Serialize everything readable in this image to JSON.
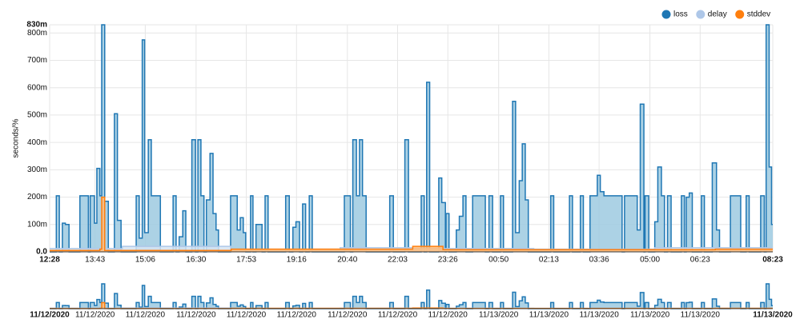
{
  "chart_data": {
    "type": "step-area",
    "y_label": "seconds/%",
    "legend": "top-right",
    "grid": true,
    "xlim": [
      0,
      1195
    ],
    "xticks": [
      {
        "value": 0,
        "label": "12:28"
      },
      {
        "value": 75,
        "label": "13:43"
      },
      {
        "value": 158,
        "label": "15:06"
      },
      {
        "value": 242,
        "label": "16:30"
      },
      {
        "value": 325,
        "label": "17:53"
      },
      {
        "value": 408,
        "label": "19:16"
      },
      {
        "value": 492,
        "label": "20:40"
      },
      {
        "value": 575,
        "label": "22:03"
      },
      {
        "value": 658,
        "label": "23:26"
      },
      {
        "value": 742,
        "label": "00:50"
      },
      {
        "value": 825,
        "label": "02:13"
      },
      {
        "value": 908,
        "label": "03:36"
      },
      {
        "value": 992,
        "label": "05:00"
      },
      {
        "value": 1075,
        "label": "06:23"
      },
      {
        "value": 1195,
        "label": "08:23"
      }
    ],
    "context_xticks": [
      {
        "value": 0,
        "label": "11/12/2020"
      },
      {
        "value": 75,
        "label": "11/12/2020"
      },
      {
        "value": 158,
        "label": "11/12/2020"
      },
      {
        "value": 242,
        "label": "11/12/2020"
      },
      {
        "value": 325,
        "label": "11/12/2020"
      },
      {
        "value": 408,
        "label": "11/12/2020"
      },
      {
        "value": 492,
        "label": "11/12/2020"
      },
      {
        "value": 575,
        "label": "11/12/2020"
      },
      {
        "value": 658,
        "label": "11/12/2020"
      },
      {
        "value": 742,
        "label": "11/13/2020"
      },
      {
        "value": 825,
        "label": "11/13/2020"
      },
      {
        "value": 908,
        "label": "11/13/2020"
      },
      {
        "value": 992,
        "label": "11/13/2020"
      },
      {
        "value": 1075,
        "label": "11/13/2020"
      },
      {
        "value": 1195,
        "label": "11/13/2020"
      }
    ],
    "ylim": [
      0,
      0.83
    ],
    "yticks": [
      {
        "value": 0,
        "label": "0.0"
      },
      {
        "value": 0.1,
        "label": "100m"
      },
      {
        "value": 0.2,
        "label": "200m"
      },
      {
        "value": 0.3,
        "label": "300m"
      },
      {
        "value": 0.4,
        "label": "400m"
      },
      {
        "value": 0.5,
        "label": "500m"
      },
      {
        "value": 0.6,
        "label": "600m"
      },
      {
        "value": 0.7,
        "label": "700m"
      },
      {
        "value": 0.8,
        "label": "800m"
      },
      {
        "value": 0.83,
        "label": "830m"
      }
    ],
    "series": [
      {
        "name": "loss",
        "color": "#1f77b4",
        "fill": "#9ecae1",
        "x": [
          0,
          11,
          16,
          21,
          26,
          32,
          50,
          64,
          67,
          74,
          78,
          83,
          86,
          91,
          97,
          107,
          112,
          118,
          143,
          148,
          153,
          157,
          163,
          168,
          183,
          204,
          209,
          214,
          220,
          225,
          235,
          241,
          245,
          250,
          255,
          259,
          265,
          270,
          275,
          279,
          299,
          310,
          315,
          320,
          324,
          332,
          336,
          341,
          351,
          356,
          361,
          390,
          396,
          402,
          407,
          413,
          418,
          423,
          429,
          434,
          487,
          497,
          501,
          507,
          512,
          517,
          523,
          562,
          568,
          587,
          593,
          614,
          619,
          623,
          628,
          643,
          648,
          654,
          655,
          660,
          672,
          677,
          683,
          688,
          699,
          720,
          726,
          732,
          745,
          750,
          765,
          770,
          776,
          781,
          786,
          791,
          828,
          833,
          859,
          864,
          877,
          882,
          893,
          905,
          910,
          916,
          946,
          950,
          971,
          976,
          982,
          984,
          990,
          1000,
          1005,
          1011,
          1016,
          1021,
          1027,
          1044,
          1049,
          1052,
          1057,
          1062,
          1077,
          1082,
          1095,
          1102,
          1107,
          1125,
          1142,
          1151,
          1156,
          1175,
          1181,
          1184,
          1189,
          1193
        ],
        "values": [
          0,
          0.205,
          0,
          0.105,
          0.1,
          0,
          0.205,
          0,
          0.205,
          0.105,
          0.305,
          0.205,
          0.83,
          0.185,
          0,
          0.505,
          0.115,
          0,
          0.205,
          0.05,
          0.775,
          0.07,
          0.41,
          0.205,
          0,
          0.205,
          0,
          0.055,
          0.15,
          0,
          0.41,
          0,
          0.41,
          0.205,
          0,
          0.19,
          0.36,
          0.14,
          0.08,
          0,
          0.205,
          0.08,
          0.125,
          0.07,
          0,
          0.205,
          0,
          0.1,
          0,
          0.205,
          0,
          0.205,
          0,
          0.09,
          0.11,
          0,
          0.175,
          0,
          0.205,
          0,
          0.205,
          0,
          0.41,
          0.205,
          0.41,
          0.205,
          0,
          0.205,
          0,
          0.41,
          0,
          0.205,
          0,
          0.62,
          0,
          0.27,
          0.18,
          0,
          0.14,
          0,
          0.08,
          0.13,
          0.205,
          0,
          0.205,
          0,
          0.205,
          0,
          0.205,
          0,
          0.55,
          0.07,
          0.26,
          0.395,
          0.19,
          0,
          0.205,
          0,
          0.205,
          0,
          0.205,
          0,
          0.205,
          0.28,
          0.22,
          0.205,
          0,
          0.205,
          0.08,
          0.54,
          0,
          0.205,
          0,
          0.11,
          0.31,
          0.205,
          0,
          0.205,
          0,
          0.205,
          0,
          0.2,
          0.215,
          0,
          0.205,
          0,
          0.325,
          0.08,
          0,
          0.205,
          0,
          0.205,
          0,
          0.205,
          0,
          0.83,
          0.31,
          0.1
        ]
      },
      {
        "name": "delay",
        "color": "#aec7e8",
        "fill": "#d6e4f2",
        "x": [
          0,
          120,
          300,
          480,
          600,
          800,
          1000
        ],
        "values": [
          0.012,
          0.02,
          0.01,
          0.015,
          0.012,
          0.01,
          0.015
        ]
      },
      {
        "name": "stddev",
        "color": "#ff7f0e",
        "fill": "#ffbb78",
        "x": [
          0,
          83,
          86,
          91,
          300,
          600,
          650,
          1100
        ],
        "values": [
          0.005,
          0.01,
          0.2,
          0.005,
          0.01,
          0.02,
          0.008,
          0.01
        ]
      }
    ]
  }
}
